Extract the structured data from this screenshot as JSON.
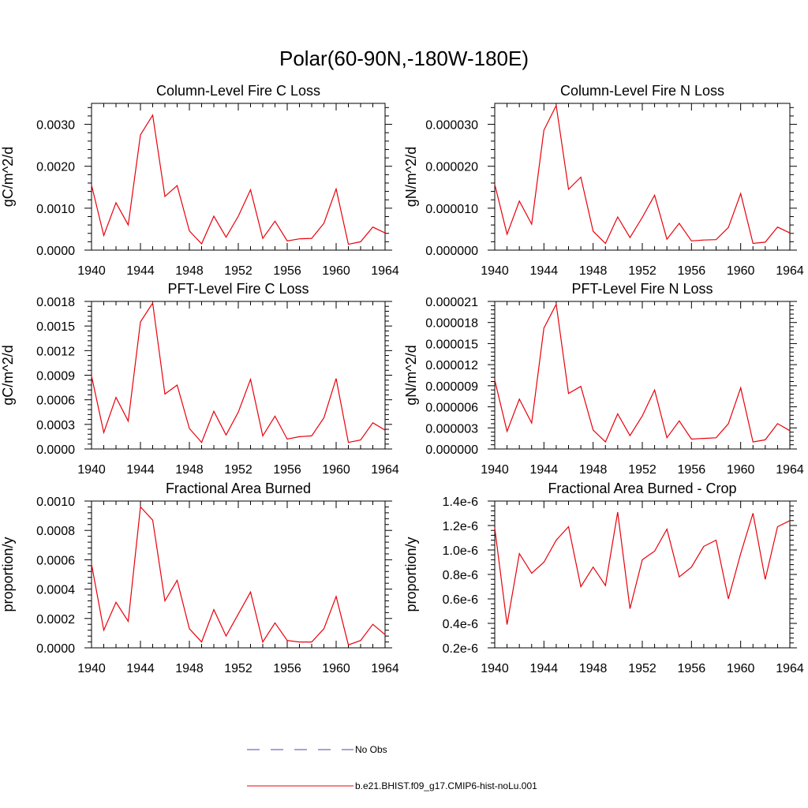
{
  "page": {
    "title": "Polar(60-90N,-180W-180E)"
  },
  "colors": {
    "series": "#e8000b",
    "obs": "#4a4aa8",
    "axis": "#000000"
  },
  "legend": [
    {
      "label": "No Obs",
      "style": "dashed",
      "color": "#4a4aa8"
    },
    {
      "label": "b.e21.BHIST.f09_g17.CMIP6-hist-noLu.001",
      "style": "solid",
      "color": "#e8000b"
    }
  ],
  "chart_data": [
    {
      "type": "line",
      "title": "Column-Level Fire C Loss",
      "ylabel": "gC/m^2/d",
      "xlim": [
        1940,
        1964
      ],
      "ylim": [
        0,
        0.0035
      ],
      "xticks": [
        1940,
        1944,
        1948,
        1952,
        1956,
        1960,
        1964
      ],
      "yticks": [
        0,
        0.001,
        0.002,
        0.003
      ],
      "ytick_labels": [
        "0.0000",
        "0.0010",
        "0.0020",
        "0.0030"
      ],
      "x": [
        1940,
        1941,
        1942,
        1943,
        1944,
        1945,
        1946,
        1947,
        1948,
        1949,
        1950,
        1951,
        1952,
        1953,
        1954,
        1955,
        1956,
        1957,
        1958,
        1959,
        1960,
        1961,
        1962,
        1963,
        1964
      ],
      "series": [
        {
          "values": [
            0.00155,
            0.00035,
            0.00113,
            0.0006,
            0.00275,
            0.00322,
            0.00128,
            0.00154,
            0.00046,
            0.00015,
            0.00081,
            0.00031,
            0.00081,
            0.00144,
            0.00028,
            0.00069,
            0.00022,
            0.00027,
            0.00028,
            0.00064,
            0.00146,
            0.00014,
            0.0002,
            0.00055,
            0.00041
          ]
        }
      ]
    },
    {
      "type": "line",
      "title": "Column-Level Fire N Loss",
      "ylabel": "gN/m^2/d",
      "xlim": [
        1940,
        1964
      ],
      "ylim": [
        0,
        3.5e-05
      ],
      "xticks": [
        1940,
        1944,
        1948,
        1952,
        1956,
        1960,
        1964
      ],
      "yticks": [
        0,
        1e-05,
        2e-05,
        3e-05
      ],
      "ytick_labels": [
        "0.000000",
        "0.000010",
        "0.000020",
        "0.000030"
      ],
      "x": [
        1940,
        1941,
        1942,
        1943,
        1944,
        1945,
        1946,
        1947,
        1948,
        1949,
        1950,
        1951,
        1952,
        1953,
        1954,
        1955,
        1956,
        1957,
        1958,
        1959,
        1960,
        1961,
        1962,
        1963,
        1964
      ],
      "series": [
        {
          "values": [
            1.57e-05,
            3.8e-06,
            1.17e-05,
            6.2e-06,
            2.86e-05,
            3.45e-05,
            1.45e-05,
            1.74e-05,
            4.5e-06,
            1.6e-06,
            7.9e-06,
            3e-06,
            7.8e-06,
            1.31e-05,
            2.6e-06,
            6.4e-06,
            2.2e-06,
            2.4e-06,
            2.5e-06,
            5.4e-06,
            1.35e-05,
            1.6e-06,
            1.9e-06,
            5.5e-06,
            4.1e-06
          ]
        }
      ]
    },
    {
      "type": "line",
      "title": "PFT-Level Fire C Loss",
      "ylabel": "gC/m^2/d",
      "xlim": [
        1940,
        1964
      ],
      "ylim": [
        0,
        0.0018
      ],
      "xticks": [
        1940,
        1944,
        1948,
        1952,
        1956,
        1960,
        1964
      ],
      "yticks": [
        0,
        0.0003,
        0.0006,
        0.0009,
        0.0012,
        0.0015,
        0.0018
      ],
      "ytick_labels": [
        "0.0000",
        "0.0003",
        "0.0006",
        "0.0009",
        "0.0012",
        "0.0015",
        "0.0018"
      ],
      "x": [
        1940,
        1941,
        1942,
        1943,
        1944,
        1945,
        1946,
        1947,
        1948,
        1949,
        1950,
        1951,
        1952,
        1953,
        1954,
        1955,
        1956,
        1957,
        1958,
        1959,
        1960,
        1961,
        1962,
        1963,
        1964
      ],
      "series": [
        {
          "values": [
            0.00089,
            0.0002,
            0.00063,
            0.00034,
            0.00155,
            0.00178,
            0.00067,
            0.00078,
            0.00025,
            8e-05,
            0.00046,
            0.00017,
            0.00045,
            0.00085,
            0.00016,
            0.0004,
            0.00012,
            0.00015,
            0.00016,
            0.00038,
            0.00086,
            8e-05,
            0.00011,
            0.00032,
            0.00023
          ]
        }
      ]
    },
    {
      "type": "line",
      "title": "PFT-Level Fire N Loss",
      "ylabel": "gN/m^2/d",
      "xlim": [
        1940,
        1964
      ],
      "ylim": [
        0,
        2.1e-05
      ],
      "xticks": [
        1940,
        1944,
        1948,
        1952,
        1956,
        1960,
        1964
      ],
      "yticks": [
        0,
        3e-06,
        6e-06,
        9e-06,
        1.2e-05,
        1.5e-05,
        1.8e-05,
        2.1e-05
      ],
      "ytick_labels": [
        "0.000000",
        "0.000003",
        "0.000006",
        "0.000009",
        "0.000012",
        "0.000015",
        "0.000018",
        "0.000021"
      ],
      "x": [
        1940,
        1941,
        1942,
        1943,
        1944,
        1945,
        1946,
        1947,
        1948,
        1949,
        1950,
        1951,
        1952,
        1953,
        1954,
        1955,
        1956,
        1957,
        1958,
        1959,
        1960,
        1961,
        1962,
        1963,
        1964
      ],
      "series": [
        {
          "values": [
            9.8e-06,
            2.5e-06,
            7.1e-06,
            3.7e-06,
            1.72e-05,
            2.06e-05,
            7.9e-06,
            8.9e-06,
            2.7e-06,
            1e-06,
            5e-06,
            1.9e-06,
            4.7e-06,
            8.4e-06,
            1.6e-06,
            4e-06,
            1.4e-06,
            1.5e-06,
            1.6e-06,
            3.6e-06,
            8.7e-06,
            1e-06,
            1.3e-06,
            3.6e-06,
            2.6e-06
          ]
        }
      ]
    },
    {
      "type": "line",
      "title": "Fractional Area Burned",
      "ylabel": "proportion/y",
      "xlim": [
        1940,
        1964
      ],
      "ylim": [
        0,
        0.001
      ],
      "xticks": [
        1940,
        1944,
        1948,
        1952,
        1956,
        1960,
        1964
      ],
      "yticks": [
        0,
        0.0002,
        0.0004,
        0.0006,
        0.0008,
        0.001
      ],
      "ytick_labels": [
        "0.0000",
        "0.0002",
        "0.0004",
        "0.0006",
        "0.0008",
        "0.0010"
      ],
      "x": [
        1940,
        1941,
        1942,
        1943,
        1944,
        1945,
        1946,
        1947,
        1948,
        1949,
        1950,
        1951,
        1952,
        1953,
        1954,
        1955,
        1956,
        1957,
        1958,
        1959,
        1960,
        1961,
        1962,
        1963,
        1964
      ],
      "series": [
        {
          "values": [
            0.00057,
            0.00012,
            0.00031,
            0.00018,
            0.00096,
            0.00087,
            0.00032,
            0.00046,
            0.00013,
            4e-05,
            0.00026,
            8e-05,
            0.00023,
            0.00038,
            4e-05,
            0.00017,
            5e-05,
            4e-05,
            4e-05,
            0.00013,
            0.00035,
            2e-05,
            5e-05,
            0.00016,
            9e-05
          ]
        }
      ]
    },
    {
      "type": "line",
      "title": "Fractional Area Burned - Crop",
      "ylabel": "proportion/y",
      "xlim": [
        1940,
        1964
      ],
      "ylim": [
        2e-07,
        1.4e-06
      ],
      "xticks": [
        1940,
        1944,
        1948,
        1952,
        1956,
        1960,
        1964
      ],
      "yticks": [
        2e-07,
        4e-07,
        6e-07,
        8e-07,
        1e-06,
        1.2e-06,
        1.4e-06
      ],
      "ytick_labels": [
        "0.2e-6",
        "0.4e-6",
        "0.6e-6",
        "0.8e-6",
        "1.0e-6",
        "1.2e-6",
        "1.4e-6"
      ],
      "x": [
        1940,
        1941,
        1942,
        1943,
        1944,
        1945,
        1946,
        1947,
        1948,
        1949,
        1950,
        1951,
        1952,
        1953,
        1954,
        1955,
        1956,
        1957,
        1958,
        1959,
        1960,
        1961,
        1962,
        1963,
        1964
      ],
      "series": [
        {
          "values": [
            1.18e-06,
            3.9e-07,
            9.7e-07,
            8.1e-07,
            9e-07,
            1.08e-06,
            1.19e-06,
            7e-07,
            8.6e-07,
            7.1e-07,
            1.31e-06,
            5.2e-07,
            9.2e-07,
            9.9e-07,
            1.17e-06,
            7.8e-07,
            8.6e-07,
            1.03e-06,
            1.08e-06,
            6e-07,
            9.7e-07,
            1.3e-06,
            7.6e-07,
            1.19e-06,
            1.24e-06
          ]
        }
      ]
    }
  ]
}
